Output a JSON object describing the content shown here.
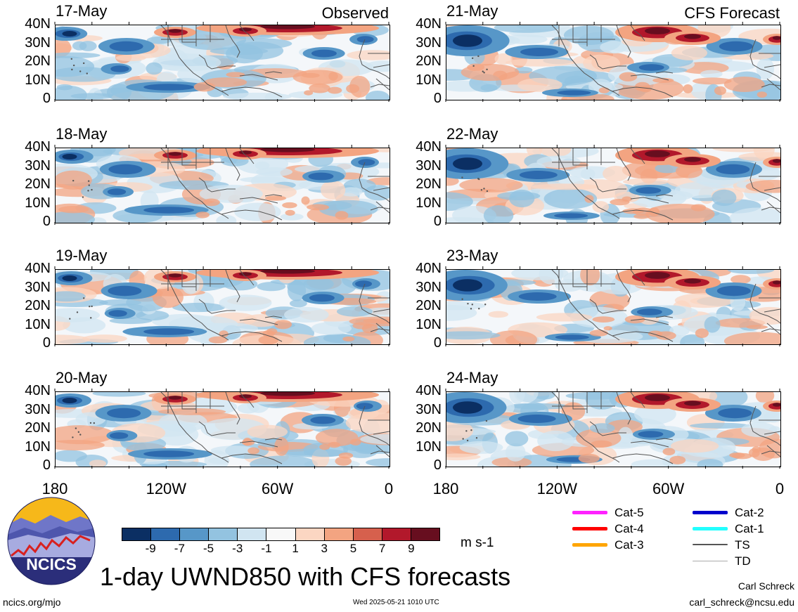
{
  "panels": [
    {
      "date": "17-May",
      "tag": "Observed",
      "mode": "obs"
    },
    {
      "date": "18-May",
      "tag": "",
      "mode": "obs"
    },
    {
      "date": "19-May",
      "tag": "",
      "mode": "obs"
    },
    {
      "date": "20-May",
      "tag": "",
      "mode": "obs"
    },
    {
      "date": "21-May",
      "tag": "CFS Forecast",
      "mode": "fcst"
    },
    {
      "date": "22-May",
      "tag": "",
      "mode": "fcst"
    },
    {
      "date": "23-May",
      "tag": "",
      "mode": "fcst"
    },
    {
      "date": "24-May",
      "tag": "",
      "mode": "fcst"
    }
  ],
  "lat_labels": [
    "40N",
    "30N",
    "20N",
    "10N",
    "0"
  ],
  "lon_labels": [
    "180",
    "120W",
    "60W",
    "0"
  ],
  "colorbar": {
    "colors": [
      "#0b2f63",
      "#2d6aae",
      "#5797c8",
      "#93c3e0",
      "#d1e5f1",
      "#f8f8f8",
      "#fbd6c2",
      "#f3a481",
      "#d6604d",
      "#b2182b",
      "#670e1f"
    ],
    "labels": [
      "-9",
      "-7",
      "-5",
      "-3",
      "-1",
      "1",
      "3",
      "5",
      "7",
      "9"
    ],
    "units": "m s-1"
  },
  "legend": [
    {
      "label": "Cat-5",
      "color": "#ff22ff",
      "style": "thick"
    },
    {
      "label": "Cat-4",
      "color": "#ff0000",
      "style": "thick"
    },
    {
      "label": "Cat-3",
      "color": "#ffa500",
      "style": "thick"
    },
    {
      "label": "Cat-2",
      "color": "#0000cc",
      "style": "thick"
    },
    {
      "label": "Cat-1",
      "color": "#22ffff",
      "style": "thick"
    },
    {
      "label": "TS",
      "color": "#555555",
      "style": "medium"
    },
    {
      "label": "TD",
      "color": "#aaaaaa",
      "style": "thin"
    }
  ],
  "logo_text": "NCICS",
  "title": "1-day UWND850 with CFS forecasts",
  "footer": {
    "url": "ncics.org/mjo",
    "timestamp": "Wed 2025-05-21 1010 UTC",
    "author": "Carl Schreck",
    "email": "carl_schreck@ncsu.edu"
  }
}
